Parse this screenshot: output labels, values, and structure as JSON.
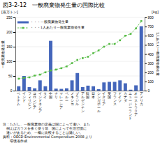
{
  "chart_data": {
    "type": "bar",
    "title": "図3-2-12　一般廃棄物発生量の国際比較",
    "ylabel": "一般廃棄物発生量",
    "y2label": "1人あたり一般廃棄物発生量",
    "yunit": "[百万トン]",
    "y2unit": "[kg]",
    "categories": [
      "ベ\nト\nナ\nム",
      "イ\nン\nド",
      "フ\nィ\nリ\nピ\nン",
      "コ\nロ\nン\nビ\nア",
      "イ\nン\nド\nネ\nシ\nア",
      "タ\nイ",
      "中\n国",
      "チ\nリ",
      "マ\nレ\nー\nシ\nア",
      "ペ\nル\nー",
      "メ\nキ\nシ\nコ",
      "ブ\nラ\nジ\nル",
      "ア\nル\nゼ\nン\nチ\nン",
      "韓\n国",
      "日\n本",
      "シ\nン\nガ\nポ\nー\nル",
      "イ\nタ\nリ\nア",
      "英\n国",
      "フ\nラ\nン\nス",
      "ド\nイ\nツ",
      "カ\nナ\nダ",
      "ニ\nュ\nー\nジ\nー\nラ\nン\nド",
      "オ\nー\nス\nト\nラ\nリ\nア",
      "ア\nメ\nリ\nカ"
    ],
    "series": [
      {
        "name": "・・・一般廃棄物発生量",
        "type": "bar",
        "color": "#4466bb",
        "values": [
          15,
          50,
          12,
          8,
          35,
          15,
          170,
          7,
          6,
          8,
          35,
          60,
          12,
          17,
          15,
          5,
          28,
          30,
          30,
          35,
          25,
          3,
          18,
          220
        ]
      },
      {
        "name": "・・・1人あたり一般廃棄物発生量",
        "type": "line",
        "axis": "y2",
        "color": "#55bb44",
        "marker": "square",
        "line_style": "dashed",
        "values": [
          130,
          140,
          145,
          165,
          175,
          200,
          220,
          230,
          245,
          265,
          300,
          335,
          355,
          370,
          410,
          440,
          480,
          510,
          510,
          550,
          600,
          620,
          680,
          760
        ]
      }
    ],
    "ylim": [
      0,
      250
    ],
    "yticks": [
      0,
      50,
      100,
      150,
      200,
      250
    ],
    "y2lim": [
      0,
      800
    ],
    "y2ticks": [
      0,
      100,
      200,
      300,
      400,
      500,
      600,
      700,
      800
    ],
    "grid": true,
    "legend": "top-left",
    "notes": [
      "注：ただし、一般廃棄物の定義は国によって違い、また",
      "　例えばガラスを多く使う等、国によって生活習慣に",
      "　違いがあるため、一概に比較することは難しい。",
      "資料：OECD Environmental Compendium 2008 より",
      "　　環境省作成"
    ]
  }
}
